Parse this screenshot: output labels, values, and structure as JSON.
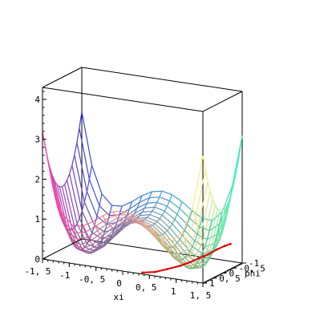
{
  "chart_data": {
    "type": "surface3d",
    "title": "",
    "xlabel": "xi",
    "ylabel": "phi",
    "zlabel": "",
    "x_ticks": [
      "-1, 5",
      "-1",
      "-0, 5",
      "0",
      "0, 5",
      "1",
      "1, 5"
    ],
    "x_tick_values": [
      -1.5,
      -1,
      -0.5,
      0,
      0.5,
      1,
      1.5
    ],
    "y_ticks": [
      "-1",
      "-0, 5",
      "0",
      "0, 5",
      "1"
    ],
    "y_tick_values": [
      -1,
      -0.5,
      0,
      0.5,
      1
    ],
    "z_ticks": [
      "0",
      "1",
      "2",
      "3",
      "4"
    ],
    "z_tick_values": [
      0,
      1,
      2,
      3,
      4
    ],
    "xlim": [
      -1.5,
      1.5
    ],
    "ylim": [
      -1,
      1
    ],
    "zlim": [
      0,
      4.3
    ],
    "surface": {
      "description_formula": "z = (xi^2 - 1)^2 + 0.5 * phi^2 + 0.5 * (xi*phi)^2",
      "x_range": [
        -1.5,
        1.5
      ],
      "y_range": [
        -1,
        1
      ],
      "nx": 17,
      "ny": 17,
      "colors": {
        "corner_left_front": "#ff3fa0",
        "corner_left_back": "#3b3bdd",
        "corner_right_back": "#38f0c8",
        "corner_right_front": "#fff07a",
        "low_valley": "#3f6b2a"
      }
    },
    "path": {
      "color": "#e00000",
      "points": [
        {
          "xi": 0.35,
          "phi": 0.95,
          "z": 0.02
        },
        {
          "xi": 0.55,
          "phi": 0.85,
          "z": 0.05
        },
        {
          "xi": 0.7,
          "phi": 0.65,
          "z": 0.1
        },
        {
          "xi": 0.85,
          "phi": 0.4,
          "z": 0.15
        },
        {
          "xi": 0.95,
          "phi": 0.15,
          "z": 0.2
        },
        {
          "xi": 1.02,
          "phi": -0.1,
          "z": 0.25
        },
        {
          "xi": 1.1,
          "phi": -0.35,
          "z": 0.3
        },
        {
          "xi": 1.18,
          "phi": -0.6,
          "z": 0.38
        },
        {
          "xi": 1.25,
          "phi": -0.8,
          "z": 0.43
        },
        {
          "xi": 1.3,
          "phi": -0.95,
          "z": 0.45
        }
      ]
    },
    "grid": false,
    "legend": "none"
  }
}
